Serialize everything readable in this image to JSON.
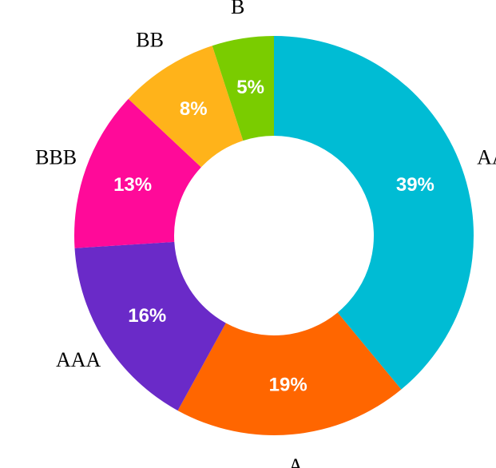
{
  "chart_data": {
    "type": "pie",
    "donut": true,
    "categories": [
      "AA",
      "A",
      "AAA",
      "BBB",
      "BB",
      "B"
    ],
    "values": [
      39,
      19,
      16,
      13,
      8,
      5
    ],
    "value_labels": [
      "39%",
      "19%",
      "16%",
      "13%",
      "8%",
      "5%"
    ],
    "colors": [
      "#00BCD4",
      "#FF6600",
      "#6A2AC8",
      "#FF0A99",
      "#FFB31A",
      "#7ACC00"
    ],
    "start_position": "top",
    "direction": "clockwise"
  }
}
